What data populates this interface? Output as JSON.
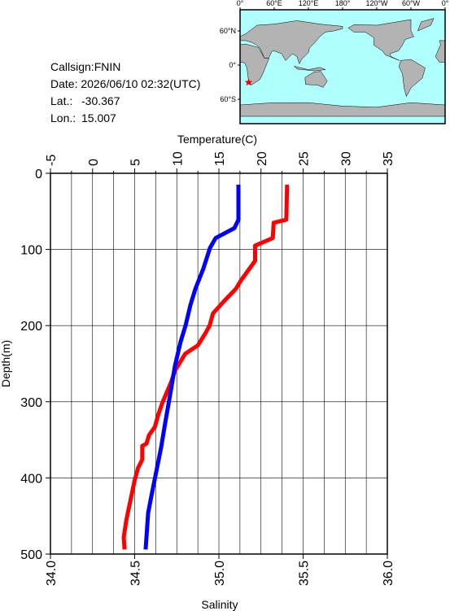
{
  "info": {
    "callsign": "Callsign:FNIN",
    "date": "Date:  2026/06/10 02:32(UTC)",
    "lat_label": "Lat.:",
    "lat": -30.367,
    "lon_label": "Lon.:",
    "lon": 15.007
  },
  "map": {
    "lon_ticks": [
      {
        "value": 0,
        "label": "0°"
      },
      {
        "value": 60,
        "label": "60°E"
      },
      {
        "value": 120,
        "label": "120°E"
      },
      {
        "value": 180,
        "label": "180°"
      },
      {
        "value": 240,
        "label": "120°W"
      },
      {
        "value": 300,
        "label": "60°W"
      },
      {
        "value": 360,
        "label": "0°"
      }
    ],
    "lat_ticks": [
      {
        "value": 60,
        "label": "60°N"
      },
      {
        "value": 0,
        "label": "0°"
      },
      {
        "value": -60,
        "label": "60°S"
      }
    ]
  },
  "chart_data": {
    "type": "profile",
    "xlabel_top": "Temperature(C)",
    "xlabel_bottom": "Salinity",
    "ylabel": "Depth(m)",
    "x2lim": [
      -5,
      35
    ],
    "x2ticks": [
      -5,
      0,
      5,
      10,
      15,
      20,
      25,
      30,
      35
    ],
    "x2minorticks": [
      -2.5,
      2.5,
      7.5,
      12.5,
      17.5,
      22.5,
      27.5,
      32.5
    ],
    "xlim": [
      34,
      36
    ],
    "xticks": [
      {
        "value": 34,
        "label": "34.0"
      },
      {
        "value": 34.5,
        "label": "34.5"
      },
      {
        "value": 35,
        "label": "35.0"
      },
      {
        "value": 35.5,
        "label": "35.5"
      },
      {
        "value": 36,
        "label": "36.0"
      }
    ],
    "ylim": [
      0,
      500
    ],
    "yticks": [
      0,
      100,
      200,
      300,
      400,
      500
    ],
    "grid": true,
    "series": [
      {
        "color": "#ff0000",
        "axis": "x2",
        "values": [
          23.1,
          23.0,
          21.5,
          21.4,
          19.3,
          19.3,
          17.6,
          17.0,
          15.6,
          14.3,
          13.9,
          13.4,
          12.5,
          11.0,
          9.8,
          9.3,
          8.3,
          7.8,
          7.4,
          6.7,
          6.4,
          5.9,
          5.9,
          5.4,
          5.0,
          4.7,
          4.3,
          4.0,
          3.7,
          3.8
        ],
        "depth": [
          15,
          61,
          65,
          85,
          95,
          115,
          141,
          152,
          168,
          184,
          200,
          210,
          226,
          237,
          259,
          275,
          301,
          317,
          333,
          344,
          355,
          358,
          376,
          387,
          403,
          419,
          440,
          456,
          478,
          494
        ]
      },
      {
        "color": "#0000ff",
        "axis": "x",
        "values": [
          35.116,
          35.116,
          35.092,
          34.981,
          34.947,
          34.908,
          34.86,
          34.831,
          34.802,
          34.773,
          34.739,
          34.715,
          34.681,
          34.657,
          34.638,
          34.618,
          34.599,
          34.58,
          34.57,
          34.565
        ],
        "depth": [
          15,
          61,
          72,
          85,
          98,
          125,
          152,
          173,
          200,
          221,
          253,
          285,
          328,
          360,
          381,
          403,
          424,
          446,
          478,
          494
        ]
      }
    ]
  }
}
